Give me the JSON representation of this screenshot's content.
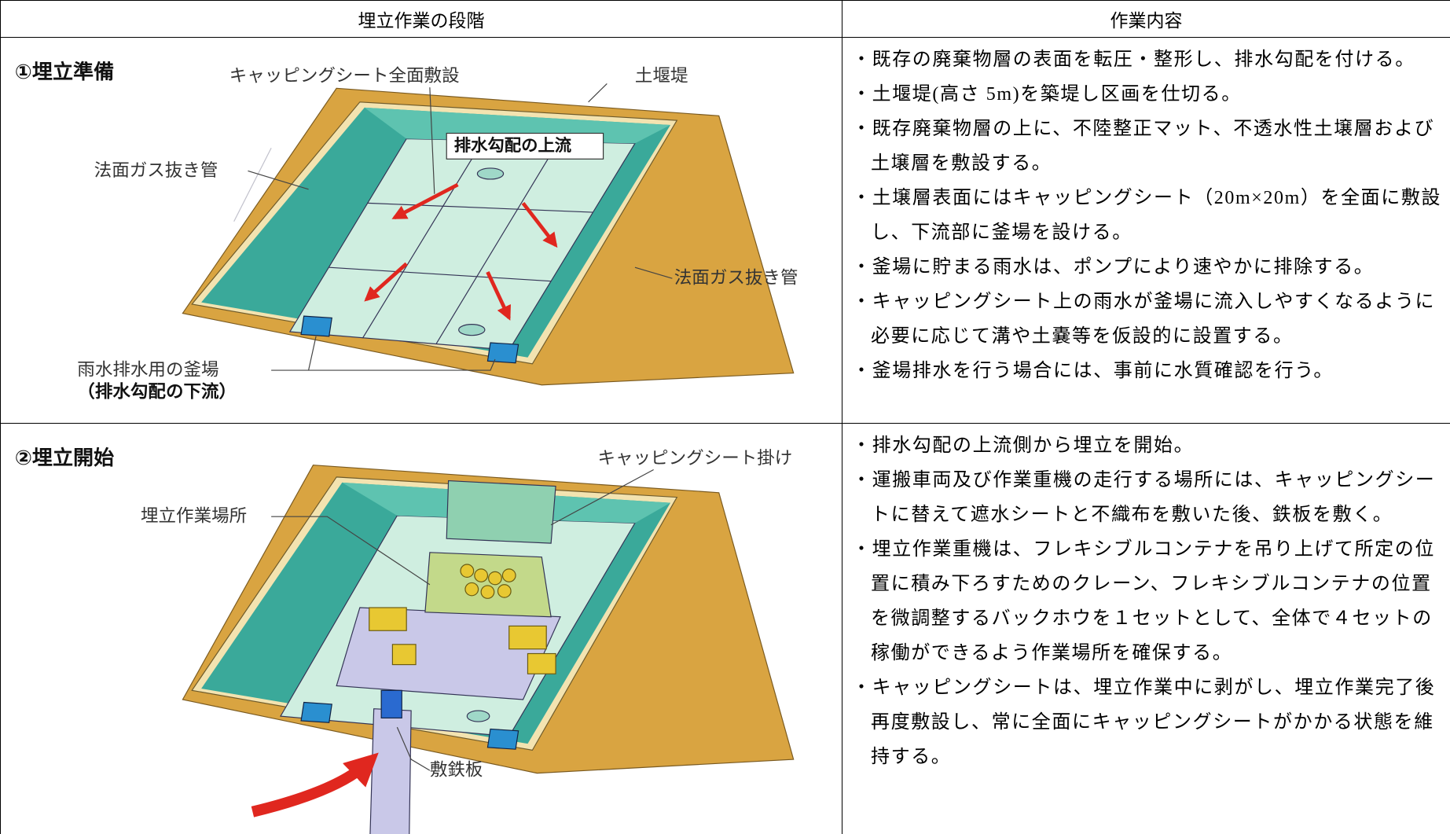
{
  "table": {
    "header": [
      "埋立作業の段階",
      "作業内容"
    ],
    "rows": [
      {
        "stage": {
          "title": "①埋立準備",
          "labels": [
            "キャッピングシート全面敷設",
            "土堰堤",
            "排水勾配の上流",
            "法面ガス抜き管",
            "法面ガス抜き管",
            "雨水排水用の釜場",
            "（排水勾配の下流）"
          ]
        },
        "items": [
          "・既存の廃棄物層の表面を転圧・整形し、排水勾配を付ける。",
          "・土堰堤(高さ 5m)を築堤し区画を仕切る。",
          "・既存廃棄物層の上に、不陸整正マット、不透水性土壌層および土壌層を敷設する。",
          "・土壌層表面にはキャッピングシート（20m×20m）を全面に敷設し、下流部に釜場を設ける。",
          "・釜場に貯まる雨水は、ポンプにより速やかに排除する。",
          "・キャッピングシート上の雨水が釜場に流入しやすくなるように必要に応じて溝や土嚢等を仮設的に設置する。",
          "・釜場排水を行う場合には、事前に水質確認を行う。"
        ]
      },
      {
        "stage": {
          "title": "②埋立開始",
          "labels": [
            "キャッピングシート掛け",
            "埋立作業場所",
            "敷鉄板"
          ]
        },
        "items": [
          "・排水勾配の上流側から埋立を開始。",
          "・運搬車両及び作業重機の走行する場所には、キャッピングシートに替えて遮水シートと不織布を敷いた後、鉄板を敷く。",
          "・埋立作業重機は、フレキシブルコンテナを吊り上げて所定の位置に積み下ろすためのクレーン、フレキシブルコンテナの位置を微調整するバックホウを１セットとして、全体で４セットの稼働ができるよう作業場所を確保する。",
          "・キャッピングシートは、埋立作業中に剥がし、埋立作業完了後再度敷設し、常に全面にキャッピングシートがかかる状態を維持する。"
        ]
      }
    ]
  }
}
